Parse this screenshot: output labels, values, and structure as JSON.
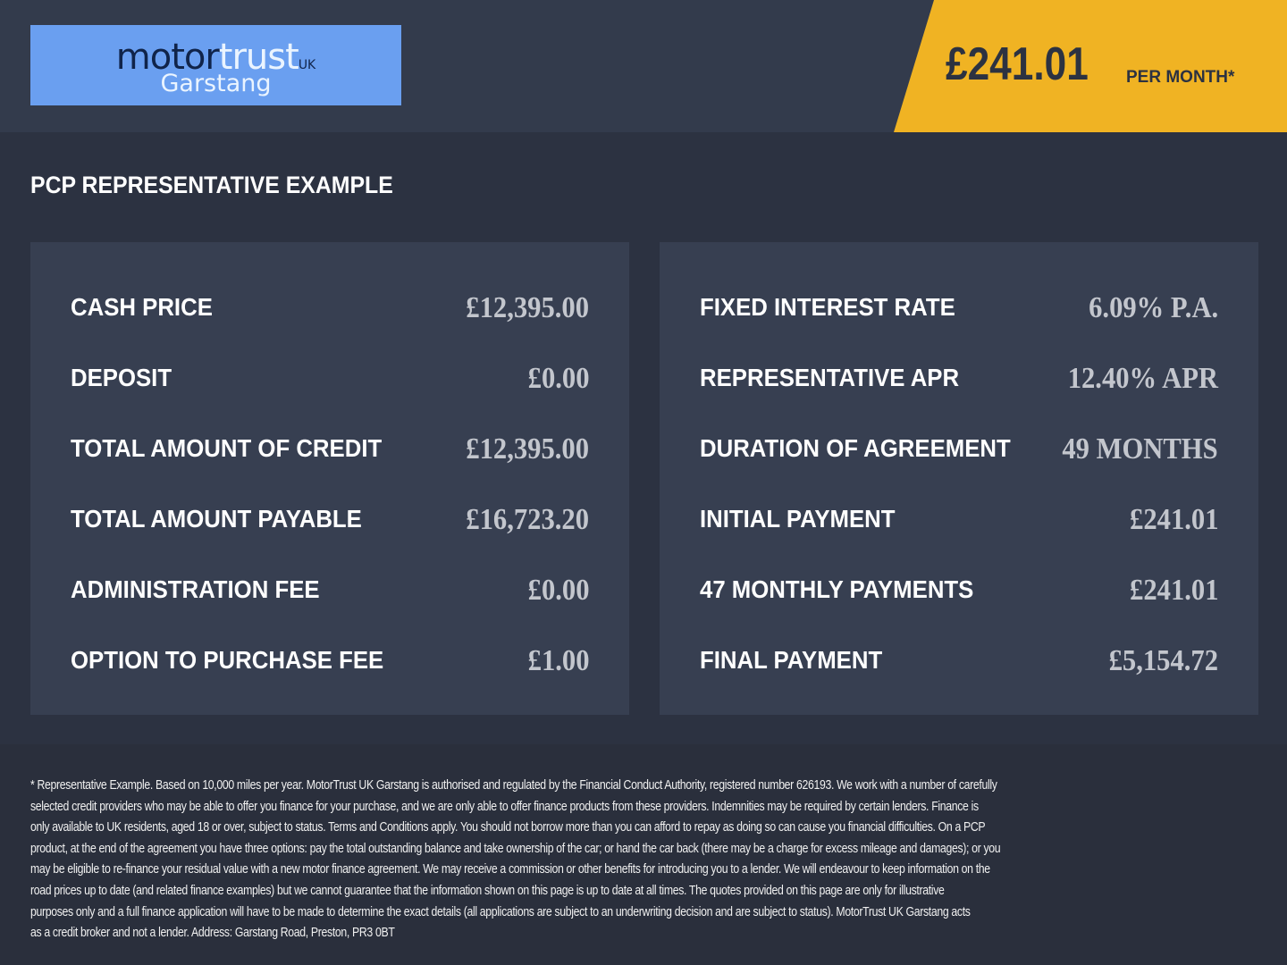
{
  "header": {
    "logo": {
      "brand_dark": "motor",
      "brand_light": "trust",
      "suffix": "UK",
      "branch": "Garstang"
    },
    "price": "£241.01",
    "per_month": "PER MONTH*"
  },
  "colors": {
    "accent": "#f0b323",
    "logo_bg": "#6a9ff0",
    "background": "#2c3241",
    "panel": "#373f51"
  },
  "title": "PCP REPRESENTATIVE EXAMPLE",
  "left": [
    {
      "label": "CASH PRICE",
      "value": "£12,395.00"
    },
    {
      "label": "DEPOSIT",
      "value": "£0.00"
    },
    {
      "label": "TOTAL AMOUNT OF CREDIT",
      "value": "£12,395.00"
    },
    {
      "label": "TOTAL AMOUNT PAYABLE",
      "value": "£16,723.20"
    },
    {
      "label": "ADMINISTRATION FEE",
      "value": "£0.00"
    },
    {
      "label": "OPTION TO PURCHASE FEE",
      "value": "£1.00"
    }
  ],
  "right": [
    {
      "label": "FIXED INTEREST RATE",
      "value": "6.09% P.A."
    },
    {
      "label": "REPRESENTATIVE APR",
      "value": "12.40% APR"
    },
    {
      "label": "DURATION OF AGREEMENT",
      "value": "49 MONTHS"
    },
    {
      "label": "INITIAL PAYMENT",
      "value": "£241.01"
    },
    {
      "label": "47 MONTHLY PAYMENTS",
      "value": "£241.01"
    },
    {
      "label": "FINAL PAYMENT",
      "value": "£5,154.72"
    }
  ],
  "disclaimer": [
    "* Representative Example. Based on 10,000 miles per year. MotorTrust UK Garstang is authorised and regulated by the Financial Conduct Authority, registered number 626193. We work with a number of carefully",
    "selected credit providers who may be able to offer you finance for your purchase, and we are only able to offer finance products from these providers. Indemnities may be required by certain lenders. Finance is",
    "only available to UK residents, aged 18 or over, subject to status. Terms and Conditions apply. You should not borrow more than you can afford to repay as doing so can cause you financial difficulties. On a PCP",
    "product, at the end of the agreement you have three options: pay the total outstanding balance and take ownership of the car; or hand the car back (there may be a charge for excess mileage and damages); or you",
    "may be eligible to re-finance your residual value with a new motor finance agreement. We may receive a commission or other benefits for introducing you to a lender. We will endeavour to keep information on the",
    "road prices up to date (and related finance examples) but we cannot guarantee that the information shown on this page is up to date at all times. The quotes provided on this page are only for illustrative",
    "purposes only and a full finance application will have to be made to determine the exact details (all applications are subject to an underwriting decision and are subject to status). MotorTrust UK Garstang acts",
    "as a credit broker and not a lender. Address: Garstang Road, Preston, PR3 0BT"
  ]
}
